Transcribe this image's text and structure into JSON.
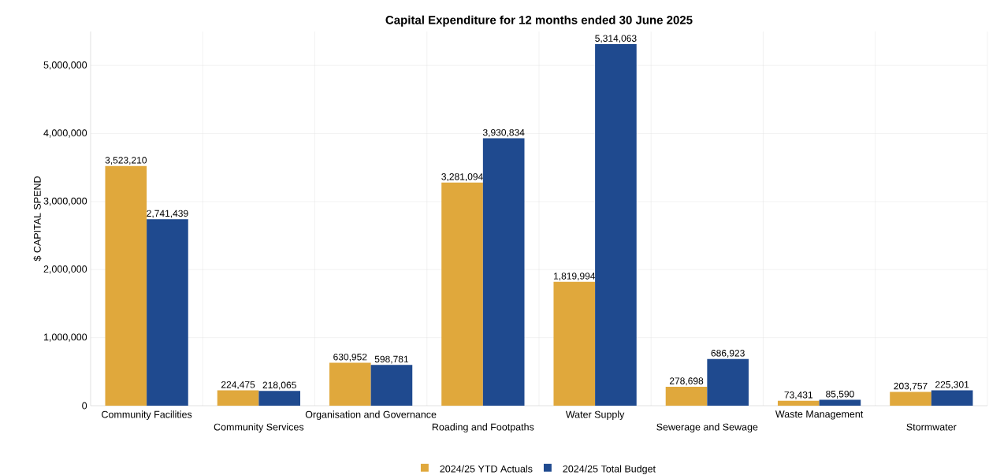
{
  "chart_data": {
    "type": "bar",
    "title": "Capital Expenditure for 12 months ended 30 June 2025",
    "ylabel": "$ CAPITAL SPEND",
    "categories": [
      "Community Facilities",
      "Community Services",
      "Organisation and Governance",
      "Roading and Footpaths",
      "Water Supply",
      "Sewerage and Sewage",
      "Waste Management",
      "Stormwater"
    ],
    "series": [
      {
        "name": "2024/25 YTD Actuals",
        "color": "#e0a83c",
        "values": [
          3523210,
          224475,
          630952,
          3281094,
          1819994,
          278698,
          73431,
          203757
        ],
        "value_labels": [
          "3,523,210",
          "224,475",
          "630,952",
          "3,281,094",
          "1,819,994",
          "278,698",
          "73,431",
          "203,757"
        ]
      },
      {
        "name": "2024/25 Total Budget",
        "color": "#1f4a8f",
        "values": [
          2741439,
          218065,
          598781,
          3930834,
          5314063,
          686923,
          85590,
          225301
        ],
        "value_labels": [
          "2,741,439",
          "218,065",
          "598,781",
          "3,930,834",
          "5,314,063",
          "686,923",
          "85,590",
          "225,301"
        ]
      }
    ],
    "ylim": [
      0,
      5500000
    ],
    "yticks": [
      {
        "value": 0,
        "label": "0"
      },
      {
        "value": 1000000,
        "label": "1,000,000"
      },
      {
        "value": 2000000,
        "label": "2,000,000"
      },
      {
        "value": 3000000,
        "label": "3,000,000"
      },
      {
        "value": 4000000,
        "label": "4,000,000"
      },
      {
        "value": 5000000,
        "label": "5,000,000"
      }
    ],
    "grid": true,
    "legend": "bottom"
  }
}
